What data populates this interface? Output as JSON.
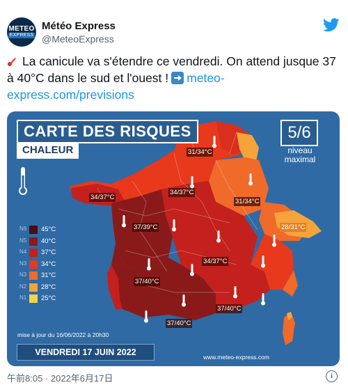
{
  "account": {
    "avatar_line1": "METEO",
    "avatar_line2": "EXPRESS",
    "display_name": "Météo Express",
    "handle": "@MeteoExpress"
  },
  "tweet": {
    "text": "La canicule va s'étendre ce vendredi. On attend jusque 37 à 40°C dans le sud et l'ouest !",
    "link": "meteo-express.com/previsions"
  },
  "map": {
    "title": "CARTE DES RISQUES",
    "subtitle": "CHALEUR",
    "level": "5/6",
    "level_label_1": "niveau",
    "level_label_2": "maximal",
    "legend": [
      {
        "code": "N6",
        "temp": "45°C",
        "color": "#4a0d14"
      },
      {
        "code": "N5",
        "temp": "40°C",
        "color": "#8a1a1a"
      },
      {
        "code": "N4",
        "temp": "37°C",
        "color": "#c4201d"
      },
      {
        "code": "N3",
        "temp": "34°C",
        "color": "#e8391c"
      },
      {
        "code": "N3",
        "temp": "31°C",
        "color": "#f06a2a"
      },
      {
        "code": "N2",
        "temp": "28°C",
        "color": "#f5a33a"
      },
      {
        "code": "N1",
        "temp": "25°C",
        "color": "#f9d44a"
      }
    ],
    "temperature_labels": [
      {
        "id": "nord-est",
        "text": "31/34°C"
      },
      {
        "id": "nord-ouest",
        "text": "34/37°C"
      },
      {
        "id": "centre-nord",
        "text": "34/37°C"
      },
      {
        "id": "est",
        "text": "31/34°C"
      },
      {
        "id": "ouest",
        "text": "37/39°C"
      },
      {
        "id": "alpes",
        "text": "28/31°C"
      },
      {
        "id": "centre",
        "text": "34/37°C"
      },
      {
        "id": "sud-ouest",
        "text": "37/40°C"
      },
      {
        "id": "sud-est",
        "text": "37/40°C"
      },
      {
        "id": "sud",
        "text": "37/40°C"
      }
    ],
    "update_text": "mise à jour du 16/06/2022 à 20h30",
    "date": "VENDREDI 17 JUIN 2022",
    "site": "www.meteo-express.com"
  },
  "footer": {
    "timestamp": "午前8:05 · 2022年6月17日"
  },
  "colors": {
    "twitter_blue": "#1d9bf0",
    "link": "#1b95e0",
    "map_background": "#2f6aa4"
  }
}
